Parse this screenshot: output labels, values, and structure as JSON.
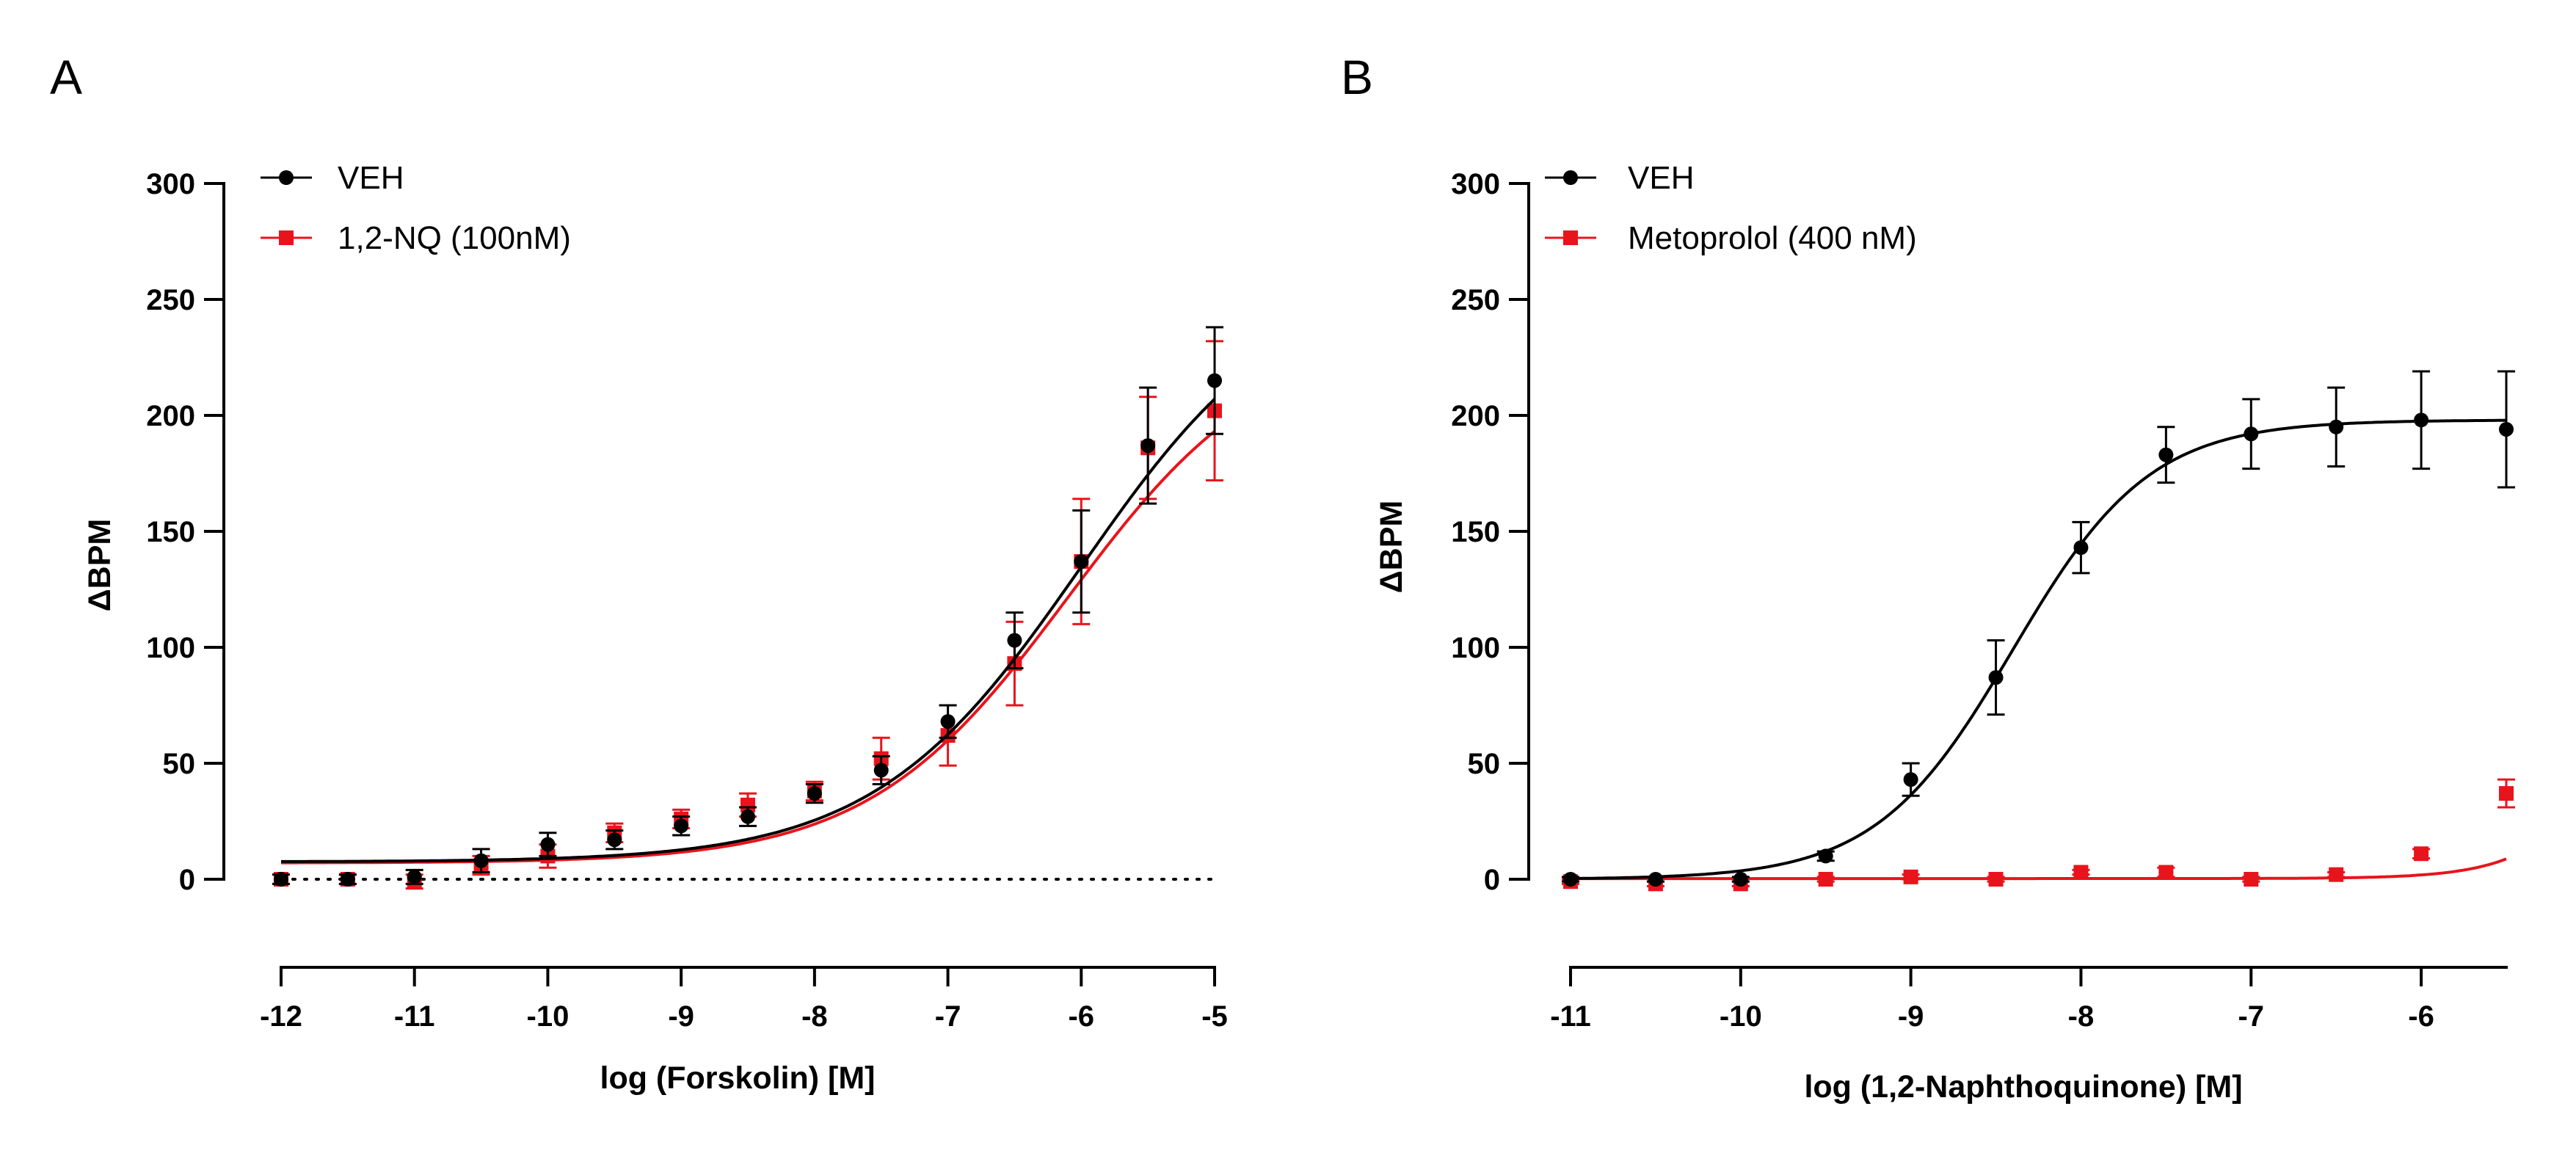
{
  "colors": {
    "veh": "#000000",
    "treated": "#e8141c",
    "axis": "#000000"
  },
  "chart_data": [
    {
      "panel": "A",
      "type": "line",
      "xlabel": "log (Forskolin) [M]",
      "ylabel": "ΔBPM",
      "xlim": [
        -12,
        -5
      ],
      "ylim": [
        0,
        300
      ],
      "xticks": [
        -12,
        -11,
        -10,
        -9,
        -8,
        -7,
        -6,
        -5
      ],
      "yticks": [
        0,
        50,
        100,
        150,
        200,
        250,
        300
      ],
      "baseline_dotted": 0,
      "legend_position": "top-left",
      "series": [
        {
          "name": "VEH",
          "marker": "circle",
          "color": "#000000",
          "x": [
            -12,
            -11.5,
            -11,
            -10.5,
            -10,
            -9.5,
            -9,
            -8.5,
            -8,
            -7.5,
            -7,
            -6.5,
            -6,
            -5.5,
            -5
          ],
          "y": [
            0,
            0,
            1,
            8,
            15,
            17,
            23,
            27,
            37,
            47,
            68,
            103,
            137,
            187,
            215
          ],
          "err": [
            2,
            2,
            3,
            5,
            5,
            4,
            4,
            4,
            4,
            6,
            7,
            12,
            22,
            25,
            23
          ],
          "fit": {
            "bottom": 7.5,
            "top": 262,
            "logec50": -6.0,
            "hill": 0.56
          }
        },
        {
          "name": "1,2-NQ (100nM)",
          "marker": "square",
          "color": "#e8141c",
          "x": [
            -12,
            -11.5,
            -11,
            -10.5,
            -10,
            -9.5,
            -9,
            -8.5,
            -8,
            -7.5,
            -7,
            -6.5,
            -6,
            -5.5,
            -5
          ],
          "y": [
            0,
            0,
            -1,
            6,
            10,
            20,
            26,
            32,
            38,
            52,
            62,
            93,
            137,
            186,
            202
          ],
          "err": [
            2,
            2,
            3,
            4,
            5,
            4,
            4,
            5,
            4,
            9,
            13,
            18,
            27,
            22,
            30
          ],
          "fit": {
            "bottom": 7.0,
            "top": 236,
            "logec50": -6.1,
            "hill": 0.58
          }
        }
      ]
    },
    {
      "panel": "B",
      "type": "line",
      "xlabel": "log (1,2-Naphthoquinone) [M]",
      "ylabel": "ΔBPM",
      "xlim": [
        -11,
        -5.5
      ],
      "ylim": [
        0,
        300
      ],
      "xticks": [
        -11,
        -10,
        -9,
        -8,
        -7,
        -6
      ],
      "yticks": [
        0,
        50,
        100,
        150,
        200,
        250,
        300
      ],
      "legend_position": "top-left",
      "series": [
        {
          "name": "VEH",
          "marker": "circle",
          "color": "#000000",
          "x": [
            -11,
            -10.5,
            -10,
            -9.5,
            -9,
            -8.5,
            -8,
            -7.5,
            -7,
            -6.5,
            -6,
            -5.5
          ],
          "y": [
            0,
            0,
            0,
            10,
            43,
            87,
            143,
            183,
            192,
            195,
            198,
            194
          ],
          "err": [
            1,
            1,
            1,
            2,
            7,
            16,
            11,
            12,
            15,
            17,
            21,
            25
          ],
          "fit": {
            "bottom": 0,
            "top": 198,
            "logec50": -8.4,
            "hill": 1.08
          }
        },
        {
          "name": "Metoprolol (400 nM)",
          "marker": "square",
          "color": "#e8141c",
          "x": [
            -11,
            -10.5,
            -10,
            -9.5,
            -9,
            -8.5,
            -8,
            -7.5,
            -7,
            -6.5,
            -6,
            -5.5
          ],
          "y": [
            -1,
            -2,
            -2,
            0,
            1,
            0,
            3,
            3,
            0,
            2,
            11,
            37
          ],
          "err": [
            1,
            1,
            1,
            1,
            1,
            1,
            1,
            2,
            1,
            1,
            2,
            6
          ],
          "fit": {
            "bottom": 0.3,
            "top": 198,
            "logec50": -4.6,
            "hill": 1.5
          }
        }
      ]
    }
  ]
}
